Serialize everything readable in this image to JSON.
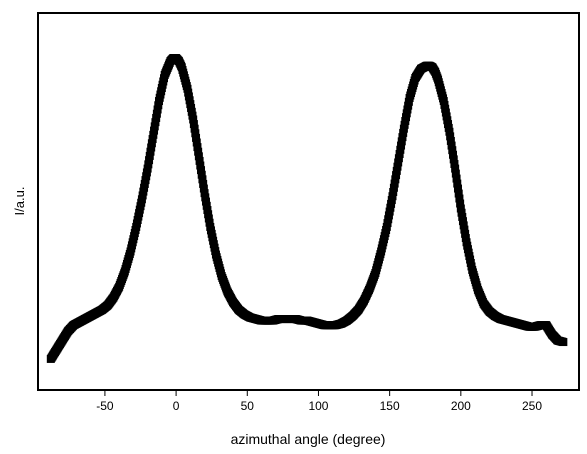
{
  "chart_data": {
    "type": "scatter",
    "title": "",
    "xlabel": "azimuthal angle (degree)",
    "ylabel": "I/a.u.",
    "xlim": [
      -97,
      283
    ],
    "ylim": [
      0,
      1.0
    ],
    "xticks": [
      -50,
      0,
      50,
      100,
      150,
      200,
      250
    ],
    "yticks": [],
    "grid": false,
    "legend": "none",
    "marker": "square",
    "marker_color": "#000000",
    "series": [
      {
        "x": [
          -88,
          -84,
          -80,
          -76,
          -72,
          -68,
          -64,
          -60,
          -56,
          -52,
          -48,
          -44,
          -40,
          -36,
          -32,
          -28,
          -24,
          -20,
          -16,
          -12,
          -8,
          -4,
          -2,
          0,
          2,
          4,
          8,
          12,
          16,
          20,
          24,
          28,
          32,
          36,
          40,
          44,
          48,
          52,
          56,
          60,
          64,
          68,
          72,
          76,
          80,
          84,
          88,
          92,
          96,
          100,
          104,
          108,
          112,
          116,
          120,
          124,
          128,
          132,
          136,
          140,
          144,
          148,
          152,
          156,
          160,
          164,
          168,
          172,
          176,
          178,
          180,
          182,
          184,
          188,
          192,
          196,
          200,
          204,
          208,
          212,
          216,
          220,
          224,
          228,
          232,
          236,
          240,
          244,
          248,
          252,
          256,
          260,
          264,
          268,
          272
        ],
        "y": [
          0.01,
          0.04,
          0.07,
          0.1,
          0.12,
          0.13,
          0.14,
          0.15,
          0.16,
          0.17,
          0.185,
          0.21,
          0.245,
          0.295,
          0.36,
          0.44,
          0.53,
          0.63,
          0.74,
          0.85,
          0.935,
          0.98,
          0.99,
          0.99,
          0.98,
          0.96,
          0.89,
          0.79,
          0.67,
          0.55,
          0.44,
          0.35,
          0.28,
          0.23,
          0.195,
          0.17,
          0.155,
          0.145,
          0.14,
          0.135,
          0.135,
          0.135,
          0.14,
          0.14,
          0.14,
          0.14,
          0.135,
          0.135,
          0.13,
          0.125,
          0.12,
          0.12,
          0.12,
          0.125,
          0.135,
          0.15,
          0.17,
          0.2,
          0.24,
          0.29,
          0.36,
          0.44,
          0.54,
          0.65,
          0.76,
          0.86,
          0.925,
          0.955,
          0.965,
          0.965,
          0.96,
          0.945,
          0.92,
          0.85,
          0.75,
          0.63,
          0.5,
          0.39,
          0.3,
          0.235,
          0.19,
          0.165,
          0.15,
          0.14,
          0.135,
          0.13,
          0.125,
          0.12,
          0.115,
          0.115,
          0.12,
          0.12,
          0.09,
          0.07,
          0.065
        ]
      }
    ]
  }
}
